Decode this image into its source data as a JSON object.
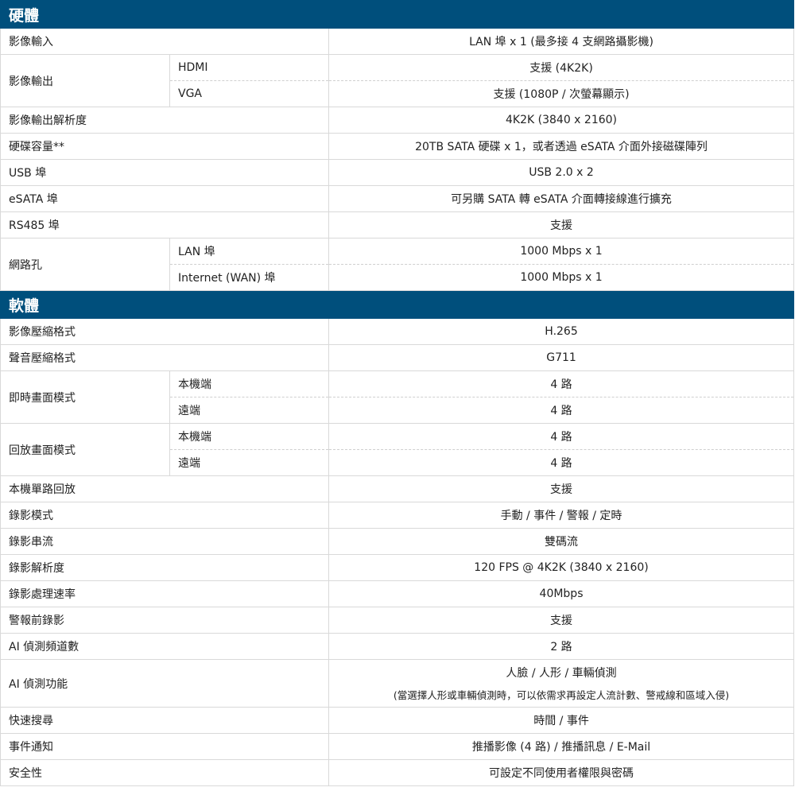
{
  "sections": [
    {
      "title": "硬體",
      "rows": [
        {
          "label": "影像輸入",
          "value": "LAN 埠 x 1 (最多接 4 支網路攝影機)"
        },
        {
          "label": "影像輸出",
          "sub": [
            {
              "label": "HDMI",
              "value": "支援 (4K2K)"
            },
            {
              "label": "VGA",
              "value": "支援 (1080P / 次螢幕顯示)"
            }
          ]
        },
        {
          "label": "影像輸出解析度",
          "value": "4K2K (3840 x 2160)"
        },
        {
          "label": "硬碟容量**",
          "value": "20TB SATA 硬碟 x 1，或者透過 eSATA 介面外接磁碟陣列"
        },
        {
          "label": "USB 埠",
          "value": "USB 2.0 x 2"
        },
        {
          "label": "eSATA 埠",
          "value": "可另購 SATA 轉 eSATA 介面轉接線進行擴充"
        },
        {
          "label": "RS485 埠",
          "value": "支援"
        },
        {
          "label": "網路孔",
          "sub": [
            {
              "label": "LAN 埠",
              "value": "1000 Mbps x 1"
            },
            {
              "label": "Internet (WAN) 埠",
              "value": "1000 Mbps x 1"
            }
          ]
        }
      ]
    },
    {
      "title": "軟體",
      "rows": [
        {
          "label": "影像壓縮格式",
          "value": "H.265"
        },
        {
          "label": "聲音壓縮格式",
          "value": "G711"
        },
        {
          "label": "即時畫面模式",
          "sub": [
            {
              "label": "本機端",
              "value": "4 路"
            },
            {
              "label": "遠端",
              "value": "4 路"
            }
          ]
        },
        {
          "label": "回放畫面模式",
          "sub": [
            {
              "label": "本機端",
              "value": "4 路"
            },
            {
              "label": "遠端",
              "value": "4 路"
            }
          ]
        },
        {
          "label": "本機單路回放",
          "value": "支援"
        },
        {
          "label": "錄影模式",
          "value": "手動 / 事件 / 警報 / 定時"
        },
        {
          "label": "錄影串流",
          "value": "雙碼流"
        },
        {
          "label": "錄影解析度",
          "value": "120 FPS @ 4K2K (3840 x 2160)"
        },
        {
          "label": "錄影處理速率",
          "value": "40Mbps"
        },
        {
          "label": "警報前錄影",
          "value": "支援"
        },
        {
          "label": "AI 偵測頻道數",
          "value": "2 路"
        },
        {
          "label": "AI 偵測功能",
          "value": "人臉 / 人形 / 車輛偵測",
          "note": "(當選擇人形或車輛偵測時，可以依需求再設定人流計數、警戒線和區域入侵)"
        },
        {
          "label": "快速搜尋",
          "value": "時間 / 事件"
        },
        {
          "label": "事件通知",
          "value": "推播影像 (4 路) / 推播訊息 / E-Mail"
        },
        {
          "label": "安全性",
          "value": "可設定不同使用者權限與密碼"
        }
      ]
    }
  ]
}
